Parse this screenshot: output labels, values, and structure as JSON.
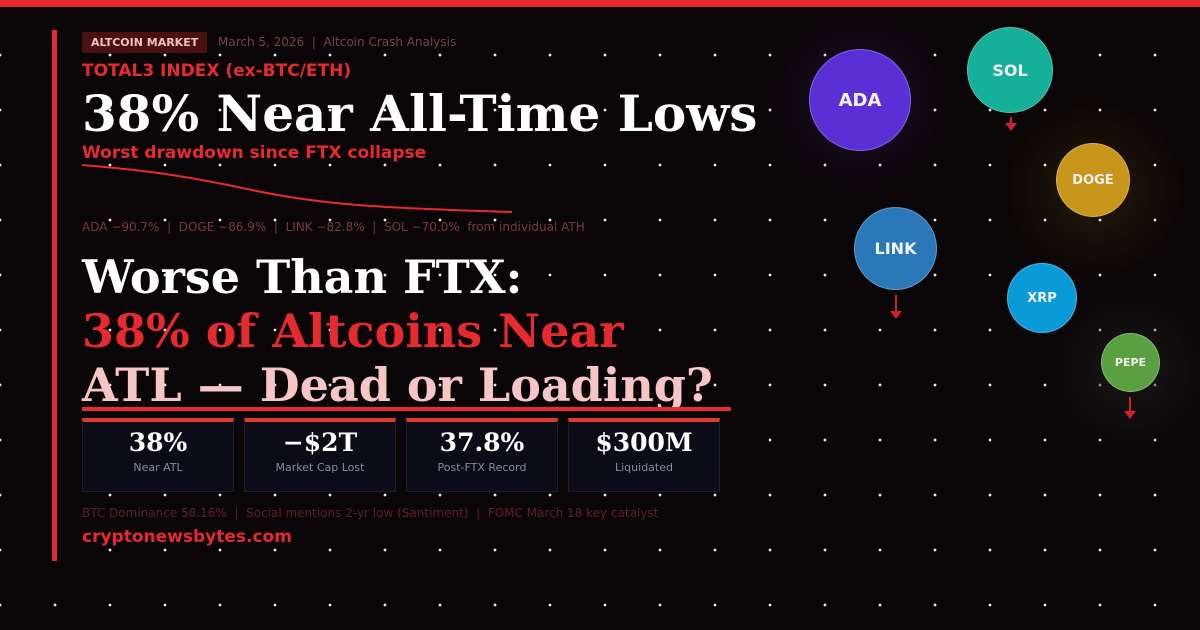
{
  "header": {
    "badge": "ALTCOIN MARKET",
    "meta": "March 5, 2026  |  Altcoin Crash Analysis",
    "index_label": "TOTAL3 INDEX (ex-BTC/ETH)",
    "headline": "38% Near All-Time Lows",
    "subhead": "Worst drawdown since FTX collapse"
  },
  "performance": "ADA −90.7%  |  DOGE −86.9%  |  LINK −82.8%  |  SOL −70.0%  from individual ATH",
  "title": {
    "line1": "Worse Than FTX:",
    "line2": "38% of Altcoins Near",
    "line3": "ATL — Dead or Loading?"
  },
  "stats": [
    {
      "value": "38%",
      "label": "Near ATL"
    },
    {
      "value": "−$2T",
      "label": "Market Cap Lost"
    },
    {
      "value": "37.8%",
      "label": "Post-FTX Record"
    },
    {
      "value": "$300M",
      "label": "Liquidated"
    }
  ],
  "footer": "BTC Dominance 58.16%  |  Social mentions 2-yr low (Santiment)  |  FOMC March 18 key catalyst",
  "site": "cryptonewsbytes.com",
  "coins": [
    {
      "name": "ADA",
      "color": "#5b2fd6"
    },
    {
      "name": "SOL",
      "color": "#14b09a"
    },
    {
      "name": "DOGE",
      "color": "#c8961a"
    },
    {
      "name": "LINK",
      "color": "#2a78b8"
    },
    {
      "name": "XRP",
      "color": "#0a9ad8"
    },
    {
      "name": "PEPE",
      "color": "#5aa040"
    }
  ],
  "colors": {
    "accent": "#e52b2f",
    "background": "#0a0506"
  }
}
